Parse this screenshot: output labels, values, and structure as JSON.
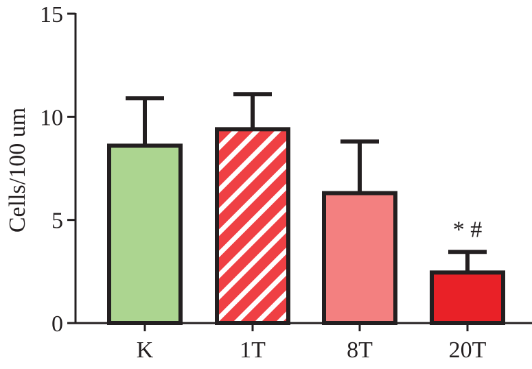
{
  "chart_data": {
    "type": "bar",
    "categories": [
      "K",
      "1T",
      "8T",
      "20T"
    ],
    "values": [
      8.6,
      9.4,
      6.3,
      2.45
    ],
    "errors": [
      2.3,
      1.7,
      2.5,
      1.0
    ],
    "ylabel": "Cells/100 um",
    "xlabel": "",
    "ylim": [
      0,
      15
    ],
    "yticks": [
      0,
      5,
      10,
      15
    ],
    "grid": false,
    "bar_styles": [
      {
        "fill": "#acd590",
        "pattern": "solid"
      },
      {
        "fill": "#ef4044",
        "pattern": "diagonal-stripes"
      },
      {
        "fill": "#f38080",
        "pattern": "solid"
      },
      {
        "fill": "#e92127",
        "pattern": "solid"
      }
    ],
    "annotations": [
      {
        "category": "20T",
        "text": "* #"
      }
    ]
  },
  "colors": {
    "axis": "#231f20",
    "bar_outline": "#231f20",
    "stripe_background": "#ffffff"
  }
}
